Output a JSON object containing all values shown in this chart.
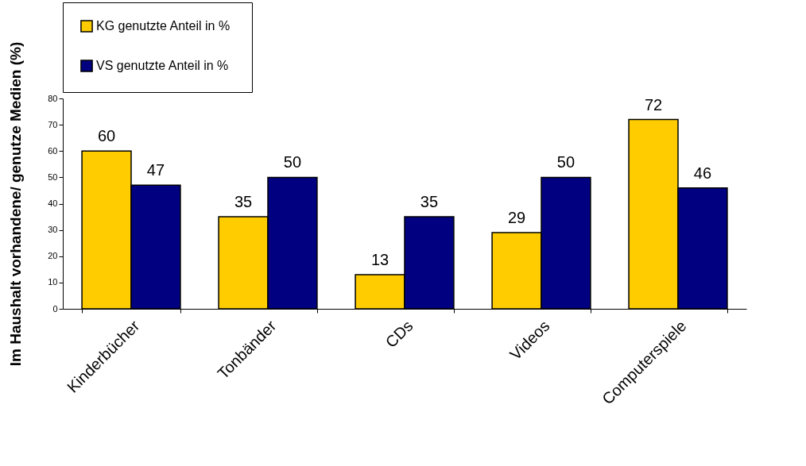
{
  "chart_data": {
    "type": "bar",
    "ylabel": "Im Haushalt vorhandene/ genutze Medien (%)",
    "categories": [
      "Kinderbücher",
      "Tonbänder",
      "CDs",
      "Videos",
      "Computerspiele"
    ],
    "series": [
      {
        "name": "KG genutzte  Anteil in %",
        "color": "#ffcc00",
        "values": [
          60,
          35,
          13,
          29,
          72
        ]
      },
      {
        "name": "VS genutzte Anteil in %",
        "color": "#000080",
        "values": [
          47,
          50,
          35,
          50,
          46
        ]
      }
    ],
    "ylim": [
      0,
      80
    ],
    "yticks": [
      0,
      10,
      20,
      30,
      40,
      50,
      60,
      70,
      80
    ],
    "grid": false,
    "legend": "top",
    "data_labels": true
  }
}
